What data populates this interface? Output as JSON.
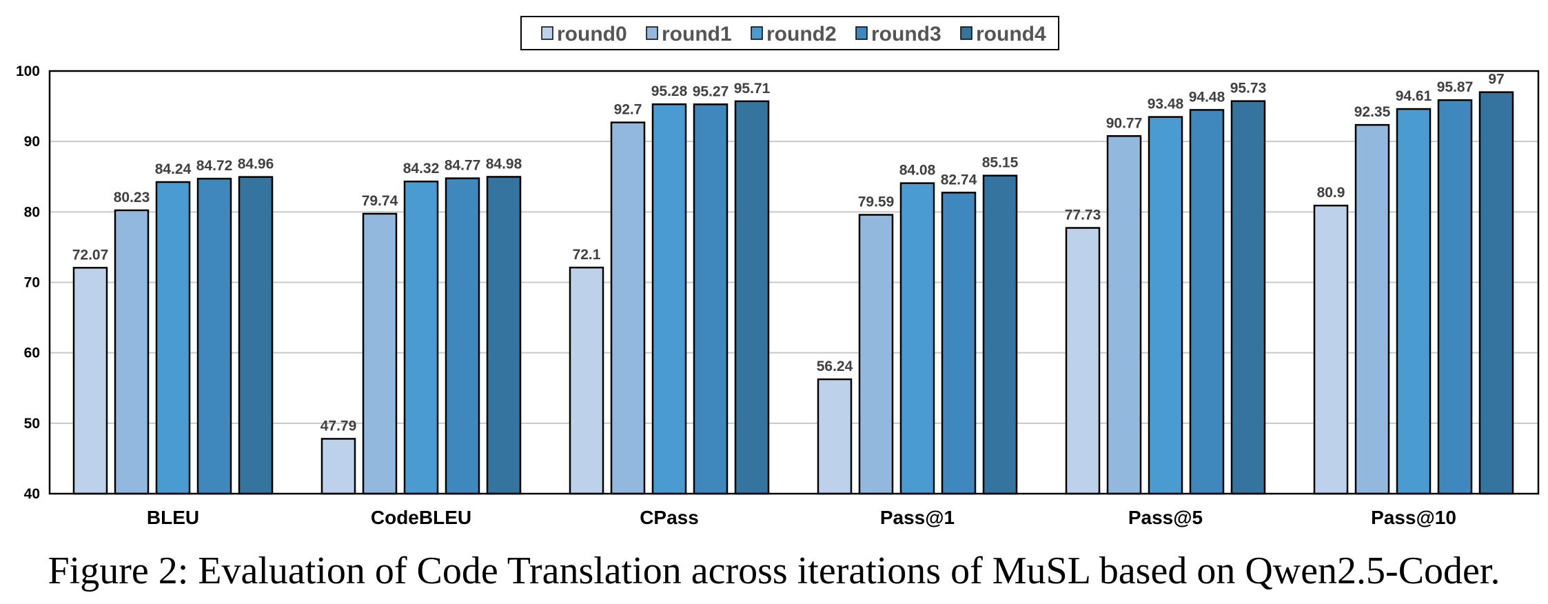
{
  "caption": "Figure 2: Evaluation of Code Translation across iterations of MuSL based on Qwen2.5-Coder.",
  "chart_data": {
    "type": "bar",
    "categories": [
      "BLEU",
      "CodeBLEU",
      "CPass",
      "Pass@1",
      "Pass@5",
      "Pass@10"
    ],
    "series": [
      {
        "name": "round0",
        "color": "#bdd1ea",
        "values": [
          72.07,
          47.79,
          72.1,
          56.24,
          77.73,
          80.9
        ],
        "labels": [
          "72.07",
          "47.79",
          "72.1",
          "56.24",
          "77.73",
          "80.9"
        ]
      },
      {
        "name": "round1",
        "color": "#93b8de",
        "values": [
          80.23,
          79.74,
          92.7,
          79.59,
          90.77,
          92.35
        ],
        "labels": [
          "80.23",
          "79.74",
          "92.7",
          "79.59",
          "90.77",
          "92.35"
        ]
      },
      {
        "name": "round2",
        "color": "#4b9bd3",
        "values": [
          84.24,
          84.32,
          95.28,
          84.08,
          93.48,
          94.61
        ],
        "labels": [
          "84.24",
          "84.32",
          "95.28",
          "84.08",
          "93.48",
          "94.61"
        ]
      },
      {
        "name": "round3",
        "color": "#3f88bd",
        "values": [
          84.72,
          84.77,
          95.27,
          82.74,
          94.48,
          95.87
        ],
        "labels": [
          "84.72",
          "84.77",
          "95.27",
          "82.74",
          "94.48",
          "95.87"
        ]
      },
      {
        "name": "round4",
        "color": "#3674a0",
        "values": [
          84.96,
          84.98,
          95.71,
          85.15,
          95.73,
          97
        ],
        "labels": [
          "84.96",
          "84.98",
          "95.71",
          "85.15",
          "95.73",
          "97"
        ]
      }
    ],
    "yticks": [
      "40",
      "50",
      "60",
      "70",
      "80",
      "90",
      "100"
    ],
    "ylim": [
      40,
      100
    ],
    "grid": true,
    "legend_position": "top-center"
  }
}
